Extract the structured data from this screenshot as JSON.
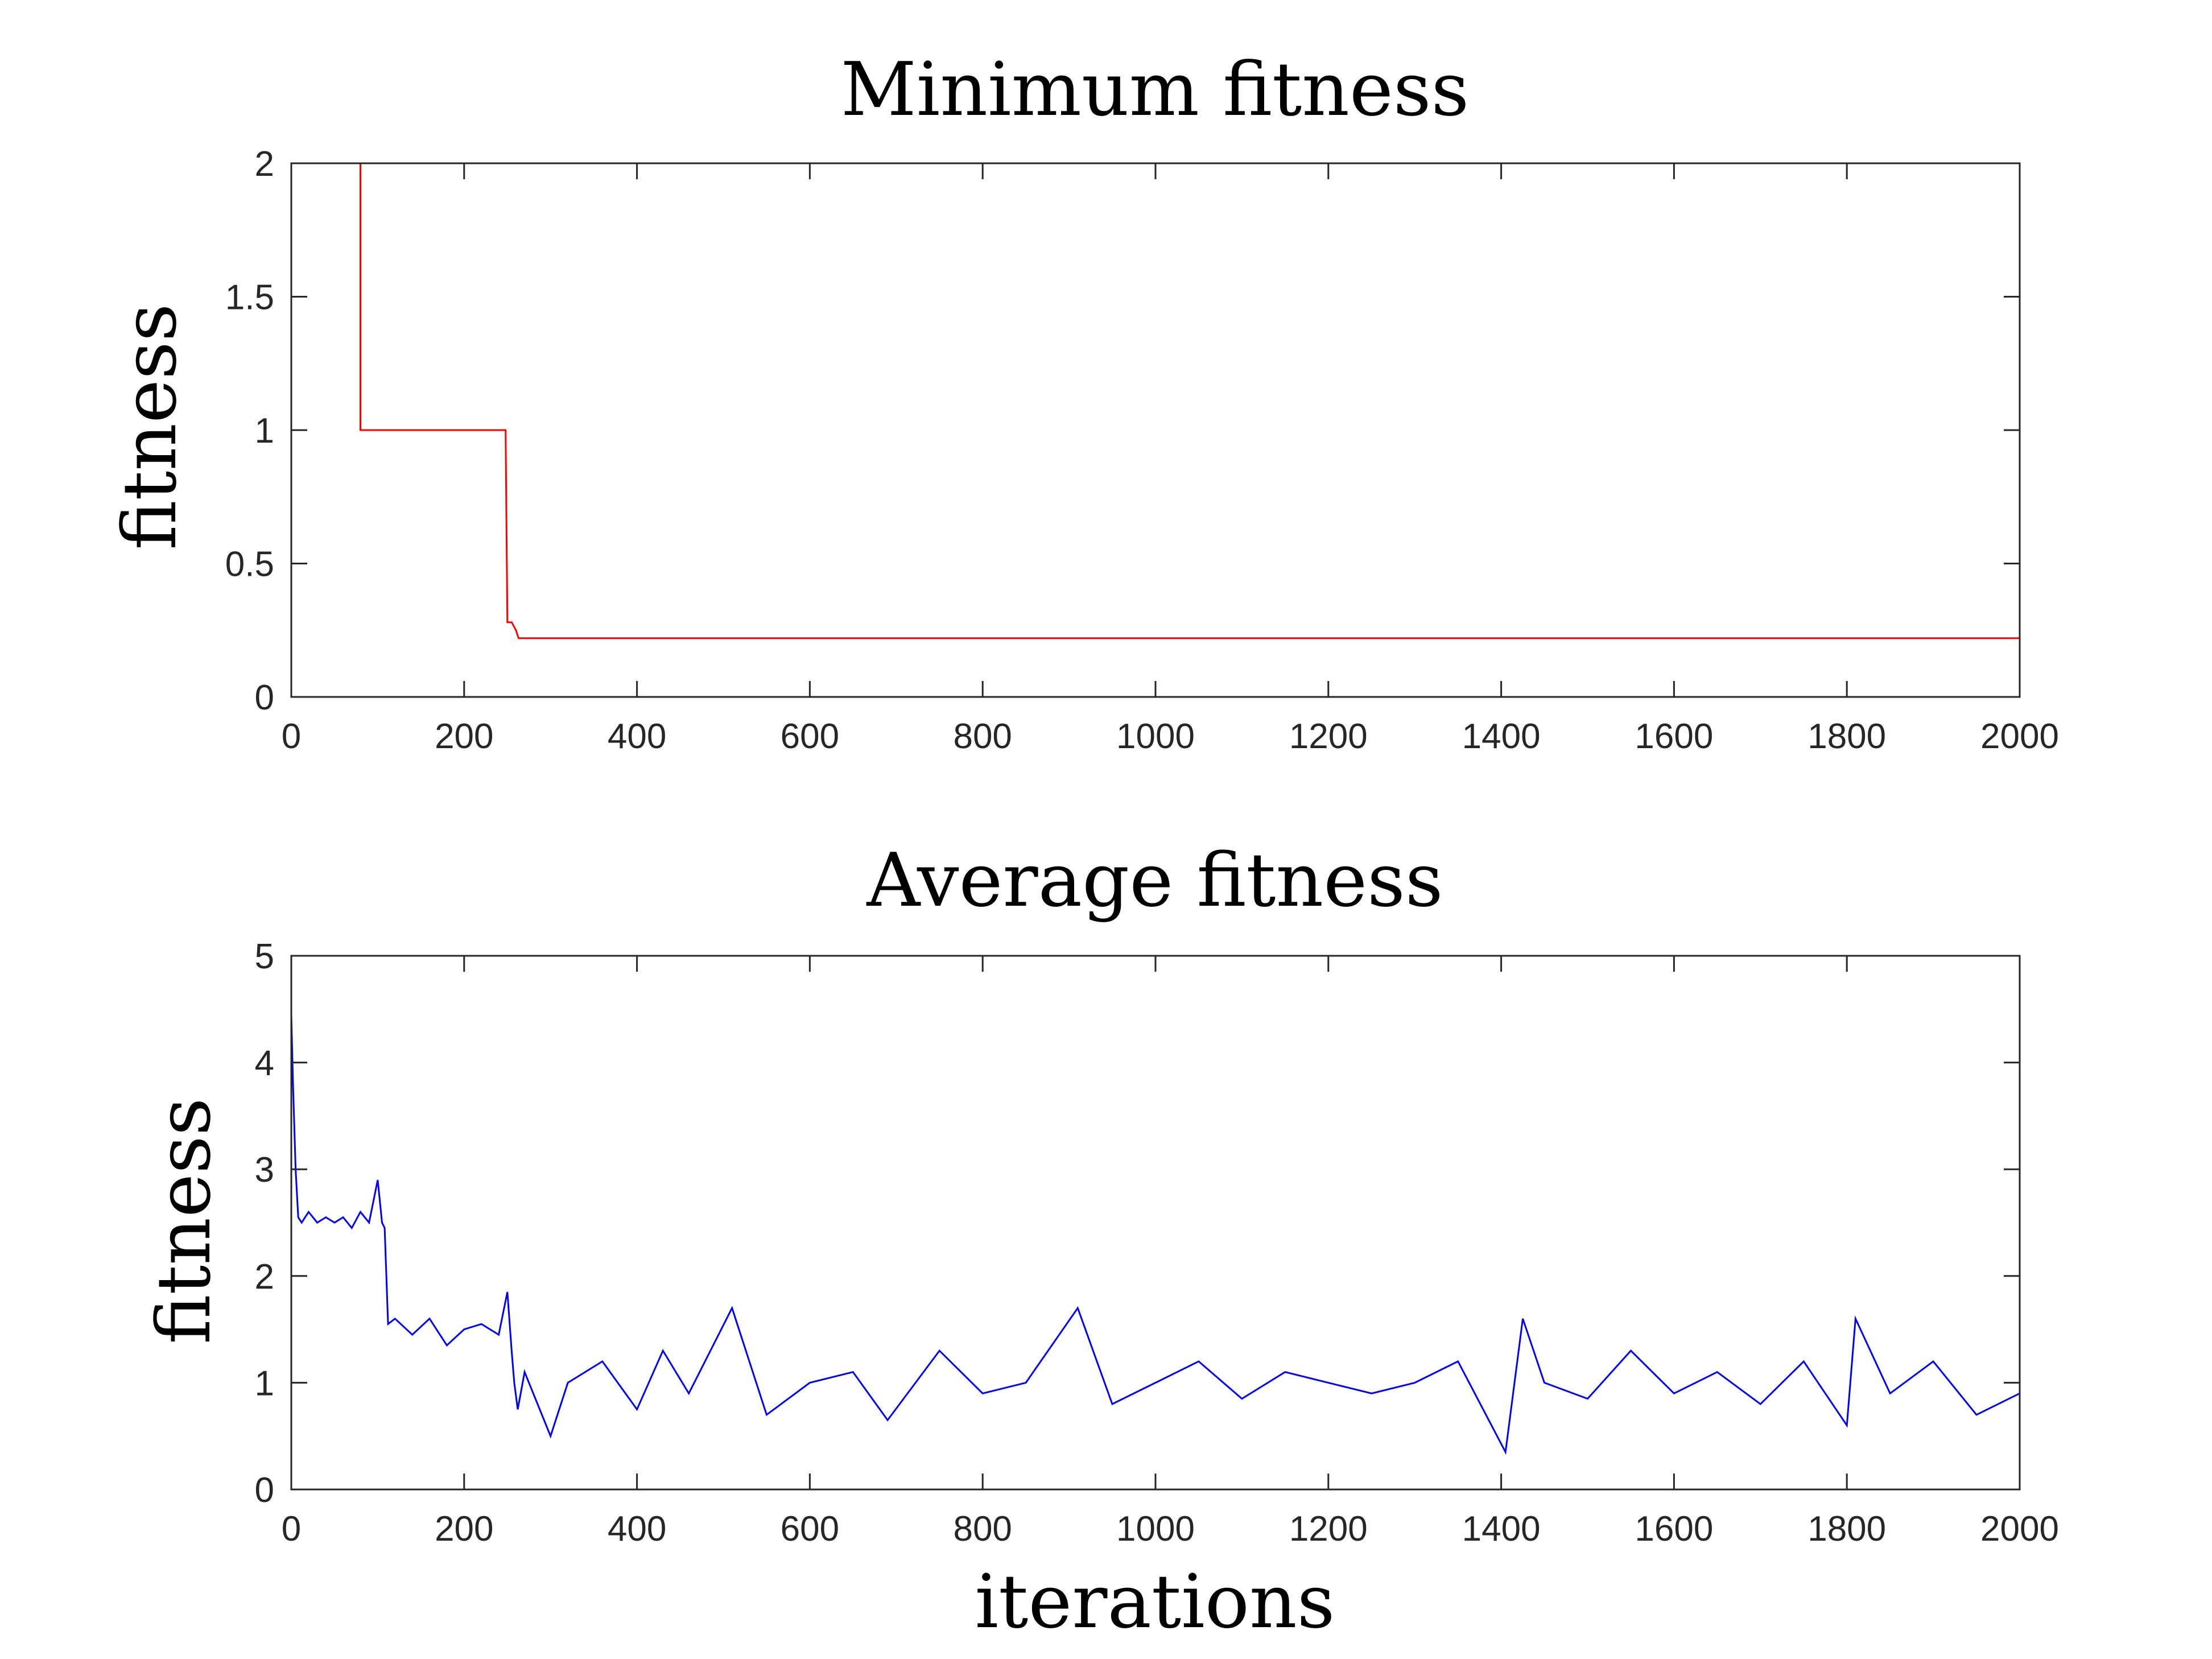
{
  "chart_data": [
    {
      "type": "line",
      "title": "Minimum fitness",
      "xlabel": "",
      "ylabel": "fitness",
      "xlim": [
        0,
        2000
      ],
      "ylim": [
        0,
        2
      ],
      "xticks": [
        0,
        200,
        400,
        600,
        800,
        1000,
        1200,
        1400,
        1600,
        1800,
        2000
      ],
      "xtick_labels": [
        "0",
        "200",
        "400",
        "600",
        "800",
        "1000",
        "1200",
        "1400",
        "1600",
        "1800",
        "2000"
      ],
      "yticks": [
        0,
        0.5,
        1,
        1.5,
        2
      ],
      "ytick_labels": [
        "0",
        "0.5",
        "1",
        "1.5",
        "2"
      ],
      "grid": false,
      "series": [
        {
          "color": "#ff0000",
          "x": [
            0,
            80,
            80,
            248,
            250,
            255,
            260,
            263,
            2000
          ],
          "y": [
            2,
            2,
            1,
            1,
            0.28,
            0.28,
            0.25,
            0.22,
            0.22
          ]
        }
      ]
    },
    {
      "type": "line",
      "title": "Average fitness",
      "xlabel": "iterations",
      "ylabel": "fitness",
      "xlim": [
        0,
        2000
      ],
      "ylim": [
        0,
        5
      ],
      "xticks": [
        0,
        200,
        400,
        600,
        800,
        1000,
        1200,
        1400,
        1600,
        1800,
        2000
      ],
      "xtick_labels": [
        "0",
        "200",
        "400",
        "600",
        "800",
        "1000",
        "1200",
        "1400",
        "1600",
        "1800",
        "2000"
      ],
      "yticks": [
        0,
        1,
        2,
        3,
        4,
        5
      ],
      "ytick_labels": [
        "0",
        "1",
        "2",
        "3",
        "4",
        "5"
      ],
      "grid": false,
      "series": [
        {
          "color": "#0000ff",
          "x": [
            0,
            2,
            5,
            8,
            12,
            20,
            30,
            40,
            50,
            60,
            70,
            80,
            90,
            100,
            105,
            108,
            112,
            120,
            140,
            160,
            180,
            200,
            220,
            240,
            250,
            255,
            258,
            262,
            270,
            280,
            300,
            320,
            360,
            400,
            430,
            460,
            510,
            550,
            600,
            650,
            690,
            750,
            800,
            850,
            910,
            950,
            1000,
            1050,
            1100,
            1150,
            1200,
            1250,
            1300,
            1350,
            1405,
            1425,
            1450,
            1500,
            1550,
            1600,
            1650,
            1700,
            1750,
            1800,
            1810,
            1850,
            1900,
            1950,
            2000
          ],
          "y": [
            4.45,
            3.8,
            3.0,
            2.55,
            2.5,
            2.6,
            2.5,
            2.55,
            2.5,
            2.55,
            2.45,
            2.6,
            2.5,
            2.9,
            2.5,
            2.45,
            1.55,
            1.6,
            1.45,
            1.6,
            1.35,
            1.5,
            1.55,
            1.45,
            1.85,
            1.3,
            1.0,
            0.75,
            1.1,
            0.9,
            0.5,
            1.0,
            1.2,
            0.75,
            1.3,
            0.9,
            1.7,
            0.7,
            1.0,
            1.1,
            0.65,
            1.3,
            0.9,
            1.0,
            1.7,
            0.8,
            1.0,
            1.2,
            0.85,
            1.1,
            1.0,
            0.9,
            1.0,
            1.2,
            0.35,
            1.6,
            1.0,
            0.85,
            1.3,
            0.9,
            1.1,
            0.8,
            1.2,
            0.6,
            1.6,
            0.9,
            1.2,
            0.7,
            0.9
          ]
        }
      ]
    }
  ]
}
